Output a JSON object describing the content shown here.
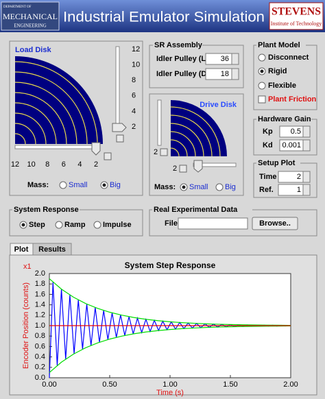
{
  "header": {
    "logo_left": [
      "DEPARTMENT OF",
      "MECHANICAL",
      "ENGINEERING"
    ],
    "title": "Industrial Emulator Simulation",
    "logo_right": {
      "name": "STEVENS",
      "subtitle": "Institute of Technology"
    }
  },
  "load_disk": {
    "label": "Load Disk",
    "vertical_slider_ticks": [
      12,
      10,
      8,
      6,
      4,
      2
    ],
    "horizontal_slider_ticks": [
      12,
      10,
      8,
      6,
      4,
      2
    ],
    "mass": {
      "label": "Mass:",
      "options": [
        "Small",
        "Big"
      ],
      "selected": 1
    }
  },
  "sr_assembly": {
    "title": "SR Assembly",
    "fields": [
      {
        "label": "Idler Pulley (L)",
        "value": 36
      },
      {
        "label": "Idler Pulley (D)",
        "value": 18
      }
    ]
  },
  "drive_disk": {
    "label": "Drive Disk",
    "vertical_slider_tick": 2,
    "horizontal_slider_tick": 2,
    "mass": {
      "label": "Mass:",
      "options": [
        "Small",
        "Big"
      ],
      "selected": 0
    }
  },
  "plant_model": {
    "title": "Plant Model",
    "options": [
      "Disconnect",
      "Rigid",
      "Flexible"
    ],
    "selected": 1,
    "friction": {
      "label": "Plant Friction",
      "checked": false
    }
  },
  "hardware_gain": {
    "title": "Hardware Gain",
    "fields": [
      {
        "label": "Kp",
        "value": "0.5"
      },
      {
        "label": "Kd",
        "value": "0.001"
      }
    ]
  },
  "setup_plot": {
    "title": "Setup Plot",
    "fields": [
      {
        "label": "Time",
        "value": 2
      },
      {
        "label": "Ref.",
        "value": 1
      }
    ]
  },
  "system_response": {
    "title": "System Response",
    "options": [
      "Step",
      "Ramp",
      "Impulse"
    ],
    "selected": 0
  },
  "real_data": {
    "title": "Real Experimental Data",
    "file_label": "File",
    "button": "Browse.."
  },
  "tabs": {
    "items": [
      "Plot",
      "Results"
    ],
    "selected": 0
  },
  "chart_data": {
    "type": "line",
    "title": "System Step Response",
    "multiplier": "x1",
    "xlabel": "Time (s)",
    "ylabel": "Encoder Position (counts)",
    "xlim": [
      0,
      2
    ],
    "xticks": [
      {
        "value": 0,
        "label": "0.00"
      },
      {
        "value": 0.5,
        "label": "0.50"
      },
      {
        "value": 1,
        "label": "1.00"
      },
      {
        "value": 1.5,
        "label": "1.50"
      },
      {
        "value": 2,
        "label": "2.00"
      }
    ],
    "ylim": [
      0,
      2
    ],
    "yticks": [
      {
        "value": 0,
        "label": "0.0"
      },
      {
        "value": 0.2,
        "label": "0.2"
      },
      {
        "value": 0.4,
        "label": "0.4"
      },
      {
        "value": 0.6,
        "label": "0.6"
      },
      {
        "value": 0.8,
        "label": "0.8"
      },
      {
        "value": 1,
        "label": "1.0"
      },
      {
        "value": 1.2,
        "label": "1.2"
      },
      {
        "value": 1.4,
        "label": "1.4"
      },
      {
        "value": 1.6,
        "label": "1.6"
      },
      {
        "value": 1.8,
        "label": "1.8"
      },
      {
        "value": 2,
        "label": "2.0"
      }
    ],
    "grid": false,
    "series": [
      {
        "color": "#0000ff",
        "x": [
          0,
          0.03,
          0.065,
          0.1,
          0.135,
          0.17,
          0.205,
          0.24,
          0.275,
          0.31,
          0.345,
          0.38,
          0.415,
          0.45,
          0.485,
          0.52,
          0.555,
          0.59,
          0.625,
          0.66,
          0.695,
          0.73,
          0.765,
          0.8,
          0.835,
          0.87,
          0.905,
          0.94,
          0.975,
          1.01,
          1.045,
          1.08,
          1.115,
          1.15,
          1.185,
          1.22,
          1.255,
          1.29,
          1.325,
          1.36,
          1.395,
          1.43,
          1.465,
          1.5,
          1.535,
          1.57,
          1.605,
          1.64,
          1.675,
          1.71,
          1.745,
          1.78,
          1.815,
          1.85,
          1.885,
          1.92,
          1.955,
          1.99
        ],
        "values": [
          0,
          1.835,
          0.235,
          1.701,
          0.358,
          1.588,
          0.461,
          1.494,
          0.547,
          1.415,
          0.62,
          1.348,
          0.681,
          1.292,
          0.732,
          1.245,
          0.775,
          1.206,
          0.811,
          1.173,
          0.842,
          1.145,
          0.867,
          1.122,
          0.888,
          1.102,
          0.906,
          1.086,
          0.921,
          1.072,
          0.934,
          1.061,
          0.945,
          1.051,
          0.953,
          1.043,
          0.961,
          1.036,
          0.967,
          1.03,
          0.973,
          1.025,
          0.977,
          1.021,
          0.981,
          1.018,
          0.984,
          1.015,
          0.987,
          1.012,
          0.989,
          1.01,
          0.991,
          1.009,
          0.992,
          1.007,
          0.993,
          1.006
        ]
      },
      {
        "color": "#00dd00",
        "x": [
          0,
          0.1,
          0.2,
          0.3,
          0.4,
          0.5,
          0.6,
          0.7,
          0.8,
          0.9,
          1,
          1.1,
          1.2,
          1.3,
          1.4,
          1.5,
          1.6,
          1.7,
          1.8,
          1.9,
          2
        ],
        "values": [
          1.9,
          1.701,
          1.546,
          1.425,
          1.331,
          1.258,
          1.201,
          1.156,
          1.122,
          1.095,
          1.074,
          1.058,
          1.045,
          1.035,
          1.027,
          1.021,
          1.016,
          1.013,
          1.01,
          1.008,
          1.006
        ]
      },
      {
        "color": "#00dd00",
        "x": [
          0,
          0.1,
          0.2,
          0.3,
          0.4,
          0.5,
          0.6,
          0.7,
          0.8,
          0.9,
          1,
          1.1,
          1.2,
          1.3,
          1.4,
          1.5,
          1.6,
          1.7,
          1.8,
          1.9,
          2
        ],
        "values": [
          0.1,
          0.299,
          0.454,
          0.575,
          0.669,
          0.742,
          0.799,
          0.844,
          0.878,
          0.905,
          0.926,
          0.942,
          0.955,
          0.965,
          0.973,
          0.979,
          0.984,
          0.987,
          0.99,
          0.992,
          0.994
        ]
      },
      {
        "color": "#ee0000",
        "x": [
          0,
          2
        ],
        "values": [
          1,
          1
        ]
      }
    ]
  }
}
